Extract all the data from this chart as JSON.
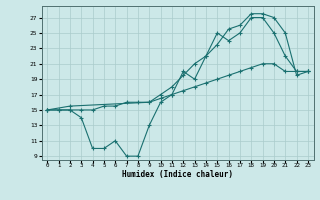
{
  "title": "",
  "xlabel": "Humidex (Indice chaleur)",
  "bg_color": "#cce8e8",
  "line_color": "#1a7070",
  "grid_color": "#aacccc",
  "xlim": [
    -0.5,
    23.5
  ],
  "ylim": [
    8.5,
    28.5
  ],
  "xticks": [
    0,
    1,
    2,
    3,
    4,
    5,
    6,
    7,
    8,
    9,
    10,
    11,
    12,
    13,
    14,
    15,
    16,
    17,
    18,
    19,
    20,
    21,
    22,
    23
  ],
  "yticks": [
    9,
    11,
    13,
    15,
    17,
    19,
    21,
    23,
    25,
    27
  ],
  "line1_x": [
    0,
    1,
    2,
    3,
    4,
    5,
    6,
    7,
    8,
    9,
    10,
    11,
    12,
    13,
    14,
    15,
    16,
    17,
    18,
    19,
    20,
    21,
    22,
    23
  ],
  "line1_y": [
    15,
    15,
    15,
    14,
    10,
    10,
    11,
    9,
    9,
    13,
    16,
    17,
    20,
    19,
    22,
    25,
    24,
    25,
    27,
    27,
    25,
    22,
    20,
    20
  ],
  "line2_x": [
    0,
    2,
    9,
    10,
    11,
    12,
    13,
    14,
    15,
    16,
    17,
    18,
    19,
    20,
    21,
    22,
    23
  ],
  "line2_y": [
    15,
    15.5,
    16,
    17,
    18,
    19.5,
    21,
    22,
    23.5,
    25.5,
    26,
    27.5,
    27.5,
    27,
    25,
    19.5,
    20
  ],
  "line3_x": [
    0,
    1,
    2,
    3,
    4,
    5,
    6,
    7,
    8,
    9,
    10,
    11,
    12,
    13,
    14,
    15,
    16,
    17,
    18,
    19,
    20,
    21,
    22,
    23
  ],
  "line3_y": [
    15,
    15,
    15,
    15,
    15,
    15.5,
    15.5,
    16,
    16,
    16,
    16.5,
    17,
    17.5,
    18,
    18.5,
    19,
    19.5,
    20,
    20.5,
    21,
    21,
    20,
    20,
    20
  ]
}
